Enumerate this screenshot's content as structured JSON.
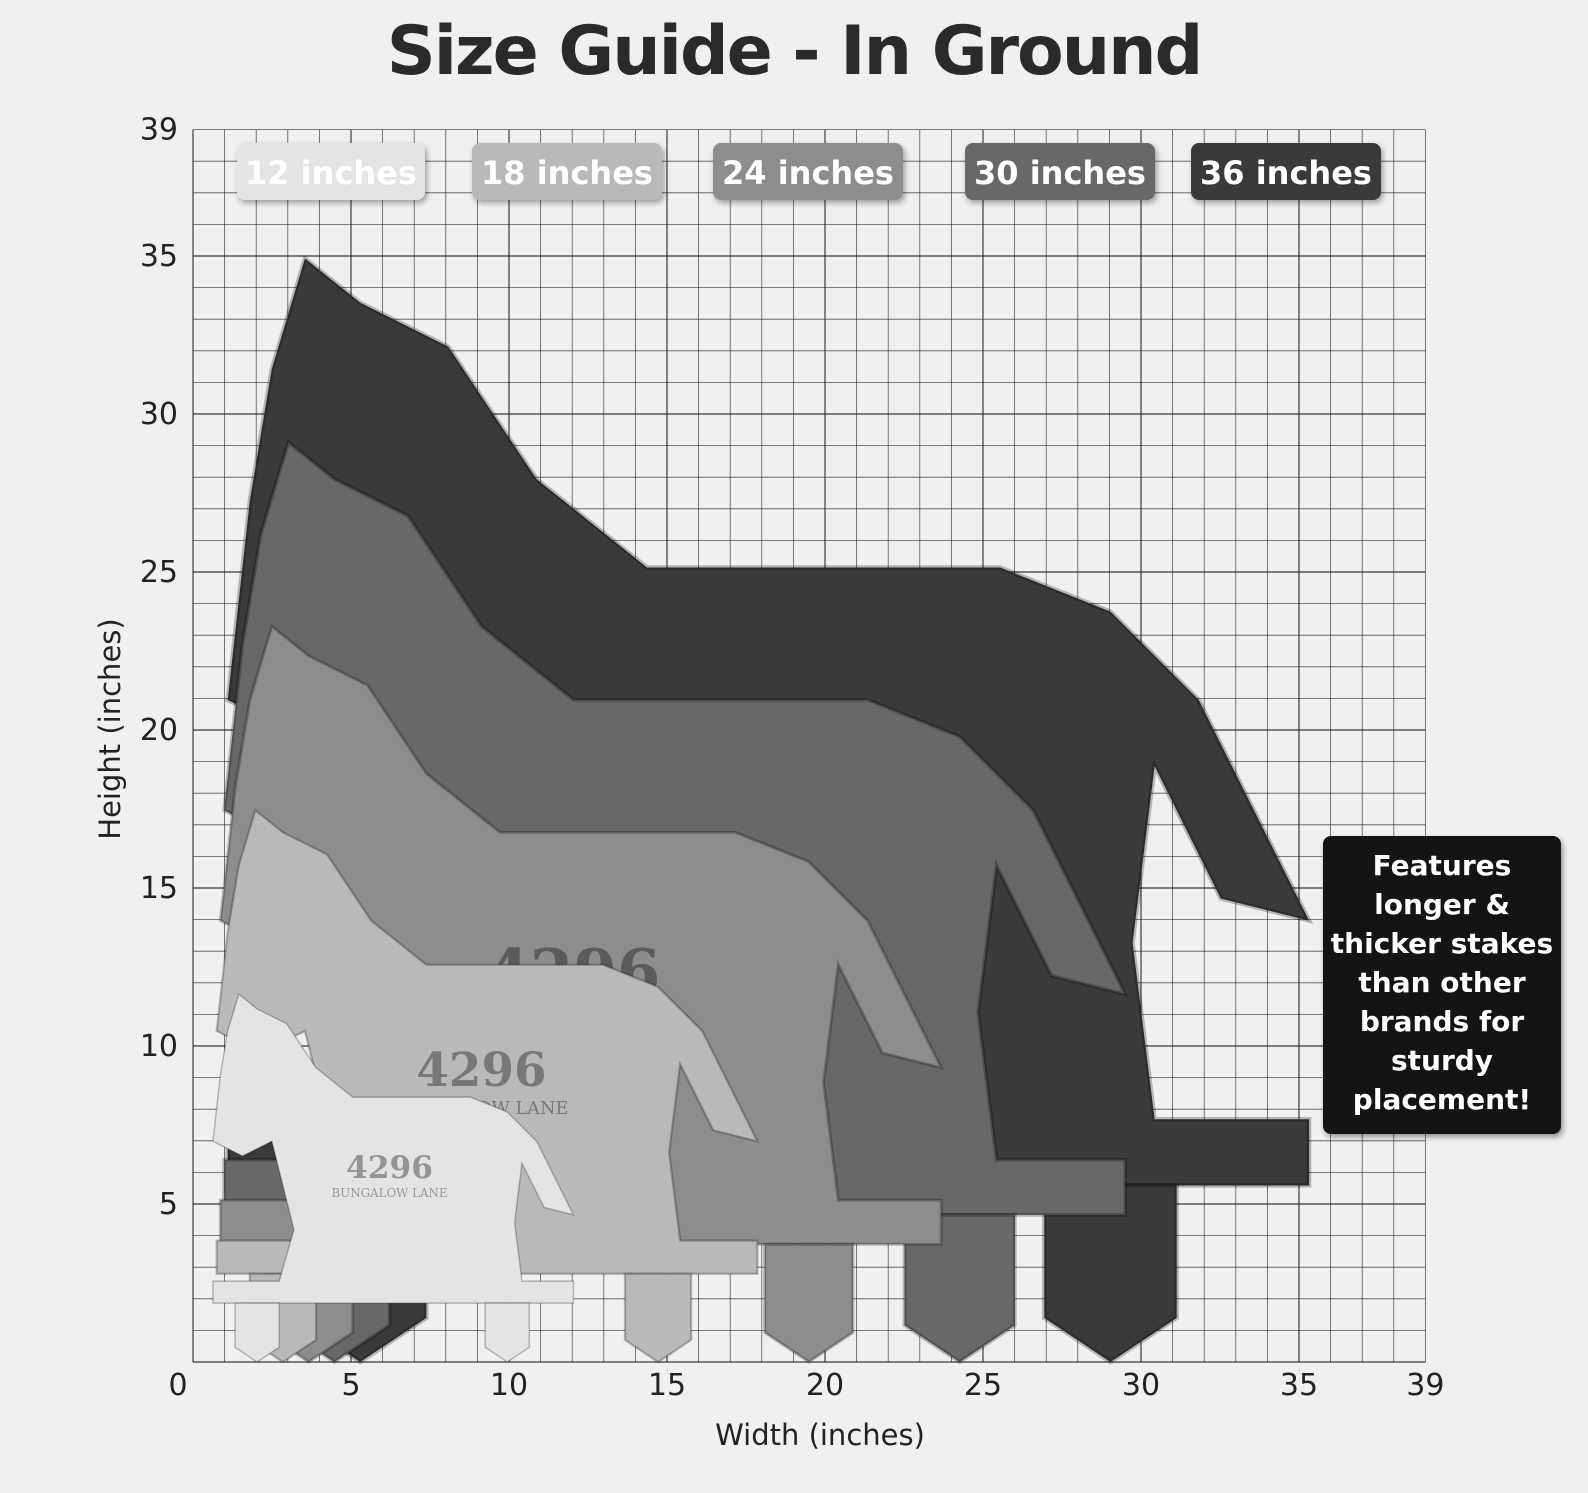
{
  "title": "Size Guide - In Ground",
  "axes": {
    "xlabel": "Width (inches)",
    "ylabel": "Height (inches)",
    "xticks": [
      "0",
      "5",
      "10",
      "15",
      "20",
      "25",
      "30",
      "35",
      "39"
    ],
    "yticks": [
      "5",
      "10",
      "15",
      "20",
      "25",
      "30",
      "35",
      "39"
    ],
    "range": [
      0,
      39
    ]
  },
  "sizes": [
    {
      "label": "12 inches",
      "inches": 12,
      "color": "#e4e4e6"
    },
    {
      "label": "18 inches",
      "inches": 18,
      "color": "#b9b9bb"
    },
    {
      "label": "24 inches",
      "inches": 24,
      "color": "#8d8d8f"
    },
    {
      "label": "30 inches",
      "inches": 30,
      "color": "#68686a"
    },
    {
      "label": "36 inches",
      "inches": 36,
      "color": "#3a3a3c"
    }
  ],
  "sign": {
    "number": "4296",
    "street": "BUNGALOW LANE"
  },
  "callout": "Features longer & thicker stakes than other brands for sturdy placement!"
}
